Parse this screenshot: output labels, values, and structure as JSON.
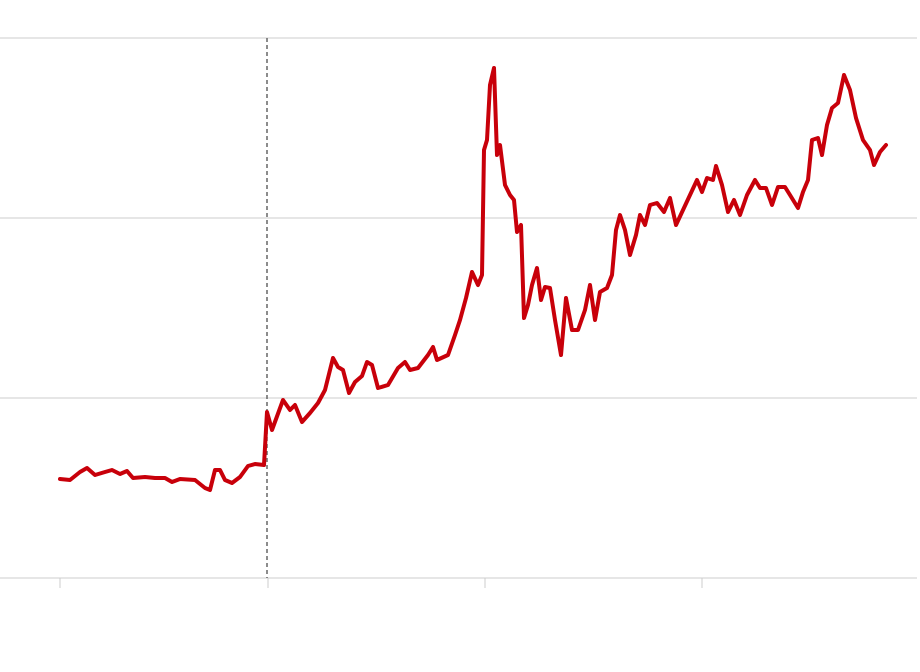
{
  "chart_data": {
    "type": "line",
    "x": [
      0,
      10,
      20,
      27,
      35,
      45,
      52,
      60,
      67,
      73,
      85,
      95,
      105,
      112,
      120,
      135,
      145,
      150,
      155,
      160,
      165,
      172,
      180,
      188,
      195,
      204,
      207,
      212,
      223,
      230,
      235,
      242,
      250,
      258,
      265,
      273,
      278,
      283,
      289,
      295,
      302,
      307,
      312,
      318,
      328,
      338,
      345,
      350,
      358,
      368,
      373,
      377,
      388,
      395,
      400,
      406,
      412,
      418,
      422,
      424,
      427,
      430,
      434,
      437,
      440,
      445,
      450,
      454,
      457,
      461,
      464,
      468,
      472,
      477,
      481,
      485,
      490,
      495,
      501,
      506,
      512,
      518,
      525,
      530,
      535,
      540,
      547,
      552,
      556,
      560,
      565,
      570,
      576,
      580,
      585,
      590,
      597,
      604,
      610,
      616,
      623,
      630,
      637,
      642,
      647,
      653,
      656,
      662,
      668,
      674,
      680,
      687,
      695,
      700,
      706,
      712,
      718,
      725,
      730,
      738,
      743,
      748,
      752,
      758,
      762,
      767,
      772,
      778,
      784,
      790,
      796,
      803,
      810,
      814,
      820,
      826
    ],
    "values": [
      99,
      98,
      106,
      110,
      103,
      106,
      108,
      104,
      107,
      100,
      101,
      100,
      100,
      96,
      99,
      98,
      90,
      88,
      108,
      108,
      98,
      95,
      101,
      112,
      114,
      113,
      166,
      148,
      178,
      168,
      173,
      156,
      165,
      175,
      188,
      220,
      211,
      208,
      185,
      196,
      202,
      216,
      213,
      190,
      193,
      210,
      216,
      208,
      210,
      223,
      231,
      218,
      223,
      243,
      258,
      280,
      306,
      293,
      303,
      428,
      438,
      493,
      510,
      423,
      433,
      393,
      383,
      378,
      346,
      353,
      260,
      273,
      293,
      310,
      278,
      291,
      290,
      258,
      223,
      280,
      248,
      248,
      268,
      293,
      258,
      286,
      290,
      303,
      348,
      363,
      348,
      323,
      343,
      363,
      353,
      373,
      375,
      366,
      380,
      353,
      368,
      383,
      398,
      386,
      400,
      398,
      412,
      393,
      366,
      378,
      363,
      383,
      398,
      390,
      390,
      373,
      391,
      391,
      383,
      370,
      386,
      398,
      438,
      440,
      423,
      453,
      470,
      475,
      503,
      488,
      460,
      438,
      428,
      413,
      426,
      433
    ],
    "color": "#c8000a",
    "xlim": [
      -60,
      857
    ],
    "xticks": [
      0,
      208,
      425,
      642
    ],
    "ylim": [
      0,
      540
    ],
    "yticks": [
      0,
      180,
      360,
      540
    ],
    "grid": true,
    "reference_line_x": 207
  }
}
